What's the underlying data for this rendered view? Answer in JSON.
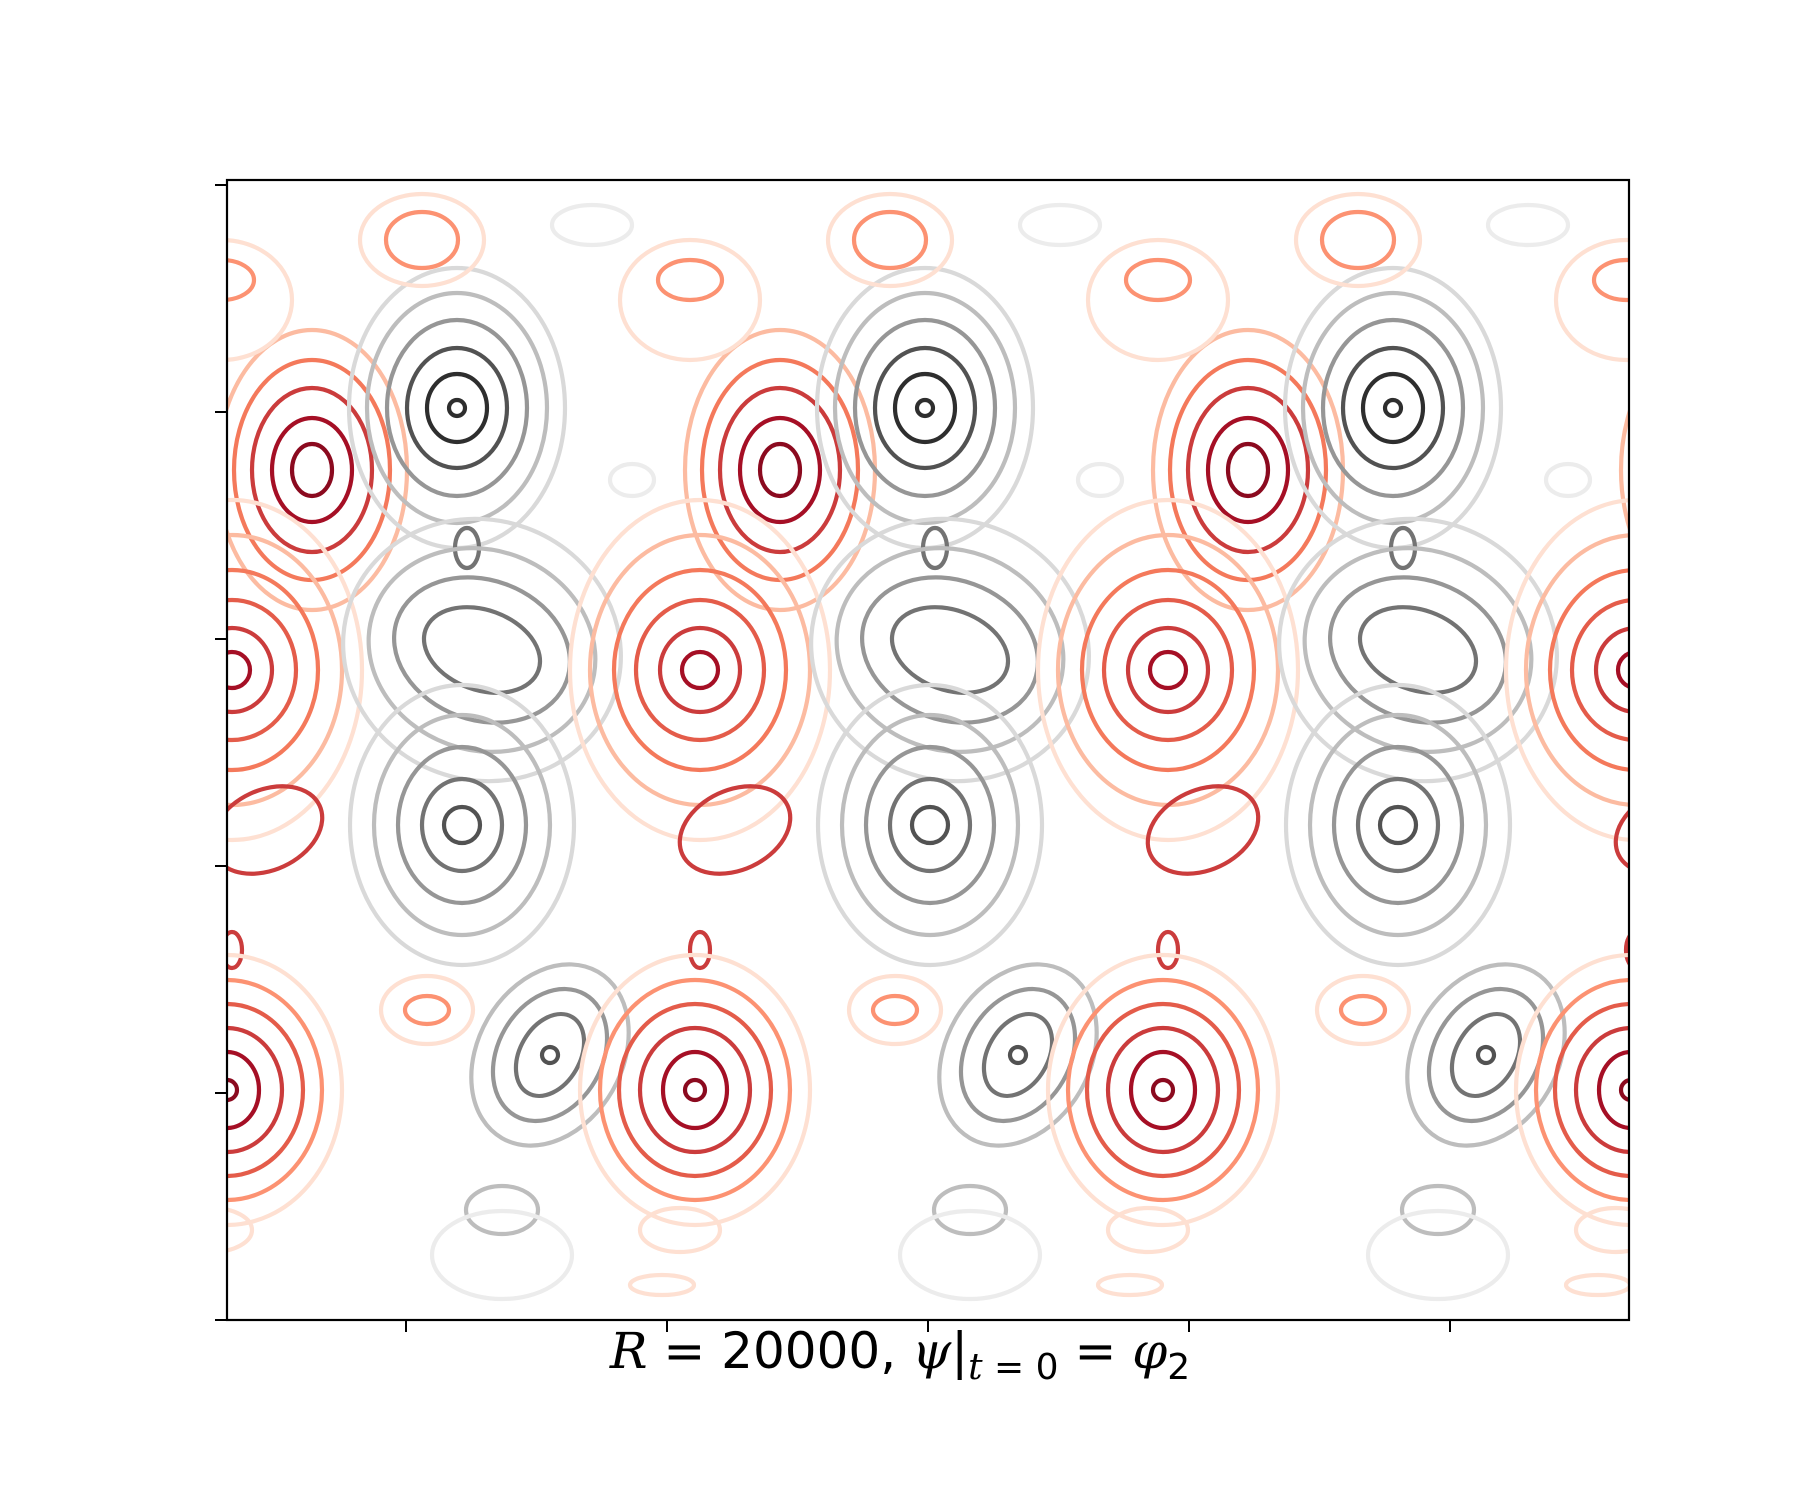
{
  "chart_data": {
    "type": "contour",
    "title": "",
    "xlabel": "",
    "ylabel": "",
    "caption": {
      "r_symbol": "R",
      "r_eq": " = ",
      "r_value": "20000",
      "sep": ", ",
      "psi": "ψ",
      "bar": "|",
      "sub_t": "t",
      "sub_eq": " = ",
      "sub_zero": "0",
      "eq": " = ",
      "phi": "φ",
      "phi_sub": "2"
    },
    "x_ticks_count": 5,
    "y_ticks_count": 6,
    "tick_labels_visible": false,
    "grid": false,
    "legend": "none",
    "periodic_copies_x": 3,
    "colormaps": {
      "positive": [
        "#fee0d2",
        "#fcbba1",
        "#fc9272",
        "#f4795b",
        "#e45c4a",
        "#cb3c3c",
        "#a50f25",
        "#8b0a1f"
      ],
      "negative": [
        "#ececec",
        "#d9d9d9",
        "#bdbdbd",
        "#969696",
        "#737373",
        "#525252",
        "#2e2e2e"
      ]
    }
  }
}
